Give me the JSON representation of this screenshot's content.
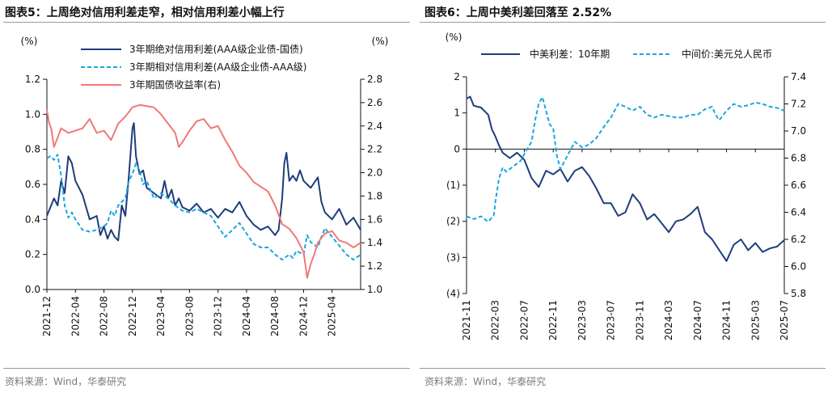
{
  "panels": [
    {
      "title": "图表5：上周绝对信用利差走窄，相对信用利差小幅上行",
      "source": "资料来源：Wind，华泰研究"
    },
    {
      "title": "图表6：上周中美利差回落至 2.52%",
      "source": "资料来源：Wind，华泰研究"
    }
  ],
  "chart_data": [
    {
      "type": "line",
      "title": "上周绝对信用利差走窄，相对信用利差小幅上行",
      "ylabel_left": "(%)",
      "ylabel_right": "(%)",
      "ylim_left": [
        0.0,
        1.2
      ],
      "yticks_left": [
        "0.0",
        "0.2",
        "0.4",
        "0.6",
        "0.8",
        "1.0",
        "1.2"
      ],
      "ylim_right": [
        1.0,
        2.8
      ],
      "yticks_right": [
        "1.0",
        "1.2",
        "1.4",
        "1.6",
        "1.8",
        "2.0",
        "2.2",
        "2.4",
        "2.6",
        "2.8"
      ],
      "x_range": [
        0,
        44
      ],
      "x_tick_positions": [
        0,
        4,
        8,
        12,
        16,
        20,
        24,
        28,
        32,
        36,
        40
      ],
      "x_tick_labels": [
        "2021-12",
        "2022-04",
        "2022-08",
        "2022-12",
        "2023-04",
        "2023-08",
        "2023-12",
        "2024-04",
        "2024-08",
        "2024-12",
        "2025-04"
      ],
      "legend_position": "top-right",
      "series": [
        {
          "name": "3年期绝对信用利差(AAA级企业债-国债)",
          "axis": "left",
          "color": "#1f3d7a",
          "dash": "solid",
          "x": [
            0,
            1,
            1.5,
            2,
            2.5,
            3,
            3.5,
            4,
            5,
            6,
            7,
            7.5,
            8,
            8.5,
            9,
            9.5,
            10,
            10.5,
            11,
            11.5,
            12,
            12.2,
            12.5,
            13,
            13.5,
            14,
            15,
            16,
            16.5,
            17,
            17.5,
            18,
            18.5,
            19,
            20,
            21,
            22,
            23,
            24,
            25,
            26,
            27,
            28,
            29,
            30,
            31,
            32,
            32.5,
            33,
            33.3,
            33.6,
            34,
            34.5,
            35,
            35.5,
            36,
            37,
            38,
            38.5,
            39,
            40,
            41,
            42,
            43,
            44
          ],
          "values": [
            0.42,
            0.52,
            0.48,
            0.62,
            0.55,
            0.76,
            0.72,
            0.62,
            0.54,
            0.4,
            0.42,
            0.31,
            0.36,
            0.29,
            0.34,
            0.3,
            0.28,
            0.48,
            0.42,
            0.65,
            0.92,
            0.95,
            0.76,
            0.66,
            0.68,
            0.58,
            0.55,
            0.52,
            0.62,
            0.52,
            0.57,
            0.48,
            0.52,
            0.47,
            0.45,
            0.49,
            0.44,
            0.46,
            0.41,
            0.46,
            0.44,
            0.5,
            0.42,
            0.37,
            0.34,
            0.36,
            0.31,
            0.34,
            0.52,
            0.72,
            0.78,
            0.62,
            0.65,
            0.62,
            0.68,
            0.62,
            0.58,
            0.64,
            0.5,
            0.44,
            0.4,
            0.46,
            0.37,
            0.41,
            0.34
          ]
        },
        {
          "name": "3年期相对信用利差(AA级企业债-AAA级)",
          "axis": "left",
          "color": "#1aa7e0",
          "dash": "dashed",
          "x": [
            0,
            0.5,
            1,
            1.5,
            2,
            2.5,
            3,
            3.5,
            4,
            5,
            6,
            7,
            8,
            8.5,
            9,
            9.5,
            10,
            11,
            11.5,
            12,
            12.5,
            13,
            13.5,
            14,
            15,
            16,
            17,
            18,
            19,
            20,
            21,
            22,
            23,
            24,
            25,
            26,
            27,
            28,
            29,
            30,
            31,
            32,
            33,
            34,
            34.5,
            35,
            36,
            36.5,
            37,
            38,
            38.5,
            39,
            40,
            41,
            42,
            43,
            44
          ],
          "values": [
            0.75,
            0.76,
            0.74,
            0.77,
            0.65,
            0.48,
            0.41,
            0.44,
            0.4,
            0.34,
            0.33,
            0.34,
            0.36,
            0.38,
            0.45,
            0.42,
            0.48,
            0.52,
            0.62,
            0.66,
            0.72,
            0.68,
            0.6,
            0.62,
            0.52,
            0.55,
            0.52,
            0.48,
            0.45,
            0.44,
            0.46,
            0.44,
            0.42,
            0.36,
            0.3,
            0.34,
            0.38,
            0.32,
            0.26,
            0.24,
            0.24,
            0.2,
            0.17,
            0.2,
            0.18,
            0.22,
            0.2,
            0.31,
            0.27,
            0.24,
            0.3,
            0.35,
            0.3,
            0.25,
            0.2,
            0.17,
            0.2
          ]
        },
        {
          "name": "3年期国债收益率(右)",
          "axis": "right",
          "color": "#f07878",
          "dash": "solid",
          "x": [
            0,
            0.3,
            0.6,
            1,
            2,
            3,
            4,
            5,
            6,
            7,
            8,
            9,
            10,
            11,
            12,
            13,
            14,
            15,
            16,
            17,
            18,
            18.5,
            19,
            20,
            21,
            22,
            23,
            24,
            25,
            26,
            27,
            28,
            29,
            30,
            31,
            32,
            33,
            34,
            35,
            36,
            36.5,
            37,
            37.5,
            38,
            39,
            40,
            41,
            42,
            43,
            44
          ],
          "values": [
            2.54,
            2.43,
            2.38,
            2.22,
            2.38,
            2.34,
            2.36,
            2.38,
            2.46,
            2.34,
            2.36,
            2.28,
            2.42,
            2.48,
            2.56,
            2.58,
            2.57,
            2.56,
            2.5,
            2.42,
            2.34,
            2.22,
            2.26,
            2.36,
            2.44,
            2.46,
            2.38,
            2.4,
            2.28,
            2.18,
            2.06,
            2.0,
            1.92,
            1.88,
            1.84,
            1.72,
            1.56,
            1.52,
            1.44,
            1.32,
            1.1,
            1.22,
            1.3,
            1.4,
            1.48,
            1.5,
            1.42,
            1.4,
            1.36,
            1.4
          ]
        }
      ]
    },
    {
      "type": "line",
      "title": "上周中美利差回落至 2.52%",
      "ylabel_left": "(%)",
      "ylim_left": [
        -4,
        2
      ],
      "yticks_left": [
        "(4)",
        "(3)",
        "(2)",
        "(1)",
        "0",
        "1",
        "2"
      ],
      "ylim_right": [
        5.8,
        7.4
      ],
      "yticks_right": [
        "5.8",
        "6.0",
        "6.2",
        "6.4",
        "6.6",
        "6.8",
        "7.0",
        "7.2",
        "7.4"
      ],
      "x_range": [
        0,
        44
      ],
      "x_tick_positions": [
        0,
        4,
        8,
        12,
        16,
        20,
        24,
        28,
        32,
        36,
        40,
        44
      ],
      "x_tick_labels": [
        "2021-11",
        "2022-03",
        "2022-07",
        "2022-11",
        "2023-03",
        "2023-07",
        "2023-11",
        "2024-03",
        "2024-07",
        "2024-11",
        "2025-03",
        "2025-07"
      ],
      "legend_position": "top",
      "series": [
        {
          "name": "中美利差：10年期",
          "axis": "left",
          "color": "#1f3d7a",
          "dash": "solid",
          "x": [
            0,
            0.5,
            1,
            2,
            3,
            3.5,
            4,
            4.5,
            5,
            6,
            7,
            8,
            9,
            10,
            11,
            12,
            13,
            14,
            15,
            16,
            17,
            18,
            19,
            20,
            21,
            22,
            23,
            24,
            25,
            26,
            27,
            28,
            29,
            30,
            31,
            32,
            33,
            34,
            35,
            36,
            37,
            38,
            39,
            40,
            41,
            42,
            43,
            44
          ],
          "values": [
            1.4,
            1.45,
            1.2,
            1.15,
            0.95,
            0.55,
            0.35,
            0.1,
            -0.1,
            -0.25,
            -0.1,
            -0.3,
            -0.8,
            -1.05,
            -0.6,
            -0.7,
            -0.55,
            -0.9,
            -0.6,
            -0.5,
            -0.75,
            -1.1,
            -1.5,
            -1.5,
            -1.85,
            -1.75,
            -1.25,
            -1.5,
            -1.95,
            -1.8,
            -2.05,
            -2.3,
            -2.0,
            -1.95,
            -1.8,
            -1.6,
            -2.3,
            -2.5,
            -2.8,
            -3.1,
            -2.65,
            -2.5,
            -2.8,
            -2.6,
            -2.85,
            -2.75,
            -2.7,
            -2.52
          ]
        },
        {
          "name": "中间价:美元兑人民币",
          "axis": "right",
          "color": "#1aa7e0",
          "dash": "dashed",
          "x": [
            0,
            1,
            2,
            3,
            3.8,
            4,
            4.5,
            5,
            5.5,
            6,
            7,
            7.5,
            8,
            9,
            9.5,
            10,
            10.5,
            11,
            11.5,
            12,
            12.5,
            13,
            14,
            15,
            16,
            17,
            18,
            19,
            20,
            21,
            22,
            23,
            24,
            25,
            26,
            27,
            28,
            29,
            30,
            31,
            32,
            33,
            34,
            34.5,
            35,
            36,
            37,
            38,
            39,
            40,
            41,
            42,
            43,
            44
          ],
          "values": [
            6.37,
            6.35,
            6.37,
            6.33,
            6.38,
            6.48,
            6.65,
            6.73,
            6.7,
            6.72,
            6.76,
            6.78,
            6.83,
            6.92,
            7.08,
            7.2,
            7.25,
            7.15,
            7.05,
            7.02,
            6.82,
            6.72,
            6.82,
            6.92,
            6.88,
            6.9,
            6.95,
            7.03,
            7.1,
            7.2,
            7.18,
            7.15,
            7.18,
            7.12,
            7.1,
            7.12,
            7.11,
            7.1,
            7.1,
            7.12,
            7.12,
            7.16,
            7.18,
            7.12,
            7.08,
            7.15,
            7.2,
            7.18,
            7.19,
            7.21,
            7.2,
            7.18,
            7.17,
            7.15
          ]
        }
      ]
    }
  ]
}
